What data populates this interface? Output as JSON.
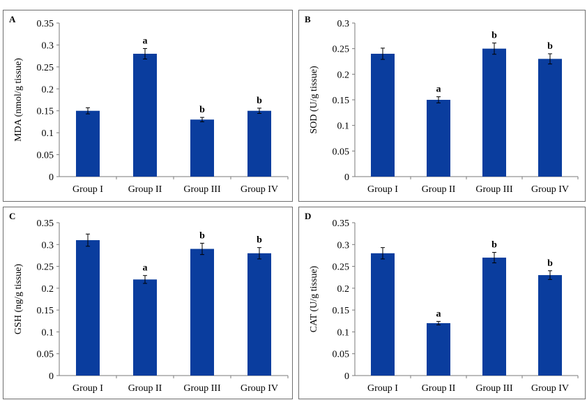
{
  "chart_data": [
    {
      "panel": "A",
      "type": "bar",
      "ylabel": "MDA (nmol/g tissue)",
      "categories": [
        "Group I",
        "Group II",
        "Group III",
        "Group IV"
      ],
      "values": [
        0.15,
        0.28,
        0.13,
        0.15
      ],
      "errors": [
        0.007,
        0.012,
        0.005,
        0.006
      ],
      "significance": [
        "",
        "a",
        "b",
        "b"
      ],
      "ylim": [
        0,
        0.35
      ],
      "yticks": [
        "0",
        "0.05",
        "0.1",
        "0.15",
        "0.2",
        "0.25",
        "0.3",
        "0.35"
      ],
      "bar_color": "#0a3d9e"
    },
    {
      "panel": "B",
      "type": "bar",
      "ylabel": "SOD (U/g tissue)",
      "categories": [
        "Group I",
        "Group II",
        "Group III",
        "Group IV"
      ],
      "values": [
        0.24,
        0.15,
        0.25,
        0.23
      ],
      "errors": [
        0.011,
        0.006,
        0.011,
        0.01
      ],
      "significance": [
        "",
        "a",
        "b",
        "b"
      ],
      "ylim": [
        0,
        0.3
      ],
      "yticks": [
        "0",
        "0.05",
        "0.1",
        "0.15",
        "0.2",
        "0.25",
        "0.3"
      ],
      "bar_color": "#0a3d9e"
    },
    {
      "panel": "C",
      "type": "bar",
      "ylabel": "GSH (ng/g tissue)",
      "categories": [
        "Group I",
        "Group II",
        "Group III",
        "Group IV"
      ],
      "values": [
        0.31,
        0.22,
        0.29,
        0.28
      ],
      "errors": [
        0.014,
        0.009,
        0.013,
        0.013
      ],
      "significance": [
        "",
        "a",
        "b",
        "b"
      ],
      "ylim": [
        0,
        0.35
      ],
      "yticks": [
        "0",
        "0.05",
        "0.1",
        "0.15",
        "0.2",
        "0.25",
        "0.3",
        "0.35"
      ],
      "bar_color": "#0a3d9e"
    },
    {
      "panel": "D",
      "type": "bar",
      "ylabel": "CAT (U/g tissue)",
      "categories": [
        "Group I",
        "Group II",
        "Group III",
        "Group IV"
      ],
      "values": [
        0.28,
        0.12,
        0.27,
        0.23
      ],
      "errors": [
        0.013,
        0.004,
        0.012,
        0.01
      ],
      "significance": [
        "",
        "a",
        "b",
        "b"
      ],
      "ylim": [
        0,
        0.35
      ],
      "yticks": [
        "0",
        "0.05",
        "0.1",
        "0.15",
        "0.2",
        "0.25",
        "0.3",
        "0.35"
      ],
      "bar_color": "#0a3d9e"
    }
  ]
}
